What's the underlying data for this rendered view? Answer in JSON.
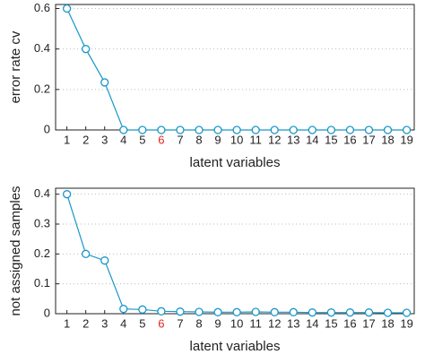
{
  "chart_data": [
    {
      "type": "line",
      "ylabel": "error rate cv",
      "xlabel": "latent variables",
      "x": [
        1,
        2,
        3,
        4,
        5,
        6,
        7,
        8,
        9,
        10,
        11,
        12,
        13,
        14,
        15,
        16,
        17,
        18,
        19
      ],
      "series": [
        {
          "color": "#1a96c8",
          "values": [
            0.6,
            0.4,
            0.235,
            0,
            0,
            0,
            0,
            0,
            0,
            0,
            0,
            0,
            0,
            0,
            0,
            0,
            0,
            0,
            0
          ]
        }
      ],
      "xlim": [
        0.4,
        19.4
      ],
      "xticks": [
        1,
        2,
        3,
        4,
        5,
        6,
        7,
        8,
        9,
        10,
        11,
        12,
        13,
        14,
        15,
        16,
        17,
        18,
        19
      ],
      "ylim": [
        0,
        0.62
      ],
      "yticks": [
        0,
        0.2,
        0.4,
        0.6
      ],
      "grid": true,
      "highlight_xtick": 6,
      "highlight_color": "#e0241c"
    },
    {
      "type": "line",
      "ylabel": "not assigned samples",
      "xlabel": "latent variables",
      "x": [
        1,
        2,
        3,
        4,
        5,
        6,
        7,
        8,
        9,
        10,
        11,
        12,
        13,
        14,
        15,
        16,
        17,
        18,
        19
      ],
      "series": [
        {
          "color": "#1a96c8",
          "values": [
            0.4,
            0.2,
            0.178,
            0.016,
            0.014,
            0.008,
            0.007,
            0.006,
            0.005,
            0.005,
            0.006,
            0.005,
            0.005,
            0.004,
            0.004,
            0.004,
            0.004,
            0.003,
            0.003
          ]
        }
      ],
      "xlim": [
        0.4,
        19.4
      ],
      "xticks": [
        1,
        2,
        3,
        4,
        5,
        6,
        7,
        8,
        9,
        10,
        11,
        12,
        13,
        14,
        15,
        16,
        17,
        18,
        19
      ],
      "ylim": [
        0,
        0.42
      ],
      "yticks": [
        0,
        0.1,
        0.2,
        0.3,
        0.4
      ],
      "grid": true,
      "highlight_xtick": 6,
      "highlight_color": "#e0241c"
    }
  ]
}
